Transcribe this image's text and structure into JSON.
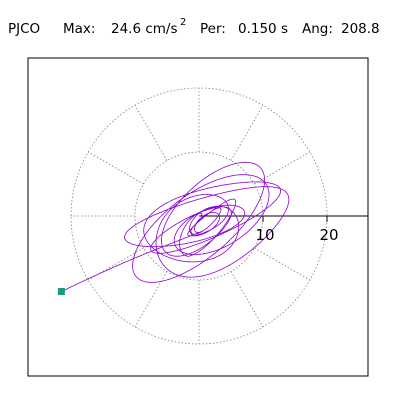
{
  "header": {
    "station": "PJCO",
    "max_label": "Max:",
    "max_value": "24.6 cm/s",
    "max_exp": "2",
    "per_label": "Per:",
    "per_value": "0.150 s",
    "ang_label": "Ang:",
    "ang_value": "208.8"
  },
  "colors": {
    "trace": "#8a00d4",
    "marker": "#1a9a7a",
    "grid": "#808080",
    "axis": "#000000",
    "frame": "#000000"
  },
  "chart_data": {
    "type": "polar-particle-motion",
    "units": "cm/s^2",
    "grid_rings": [
      10,
      20
    ],
    "radial_spokes_deg": [
      0,
      30,
      60,
      90,
      120,
      150,
      180,
      210,
      240,
      270,
      300,
      330
    ],
    "axis_ticks": [
      10,
      20
    ],
    "xlim": [
      -22,
      25
    ],
    "ylim": [
      -25,
      25
    ],
    "max_amplitude": 24.6,
    "max_angle_deg": 208.8,
    "peak_marker": {
      "x": -21.5,
      "y": -11.8
    }
  },
  "tick_labels": [
    "10",
    "20"
  ]
}
